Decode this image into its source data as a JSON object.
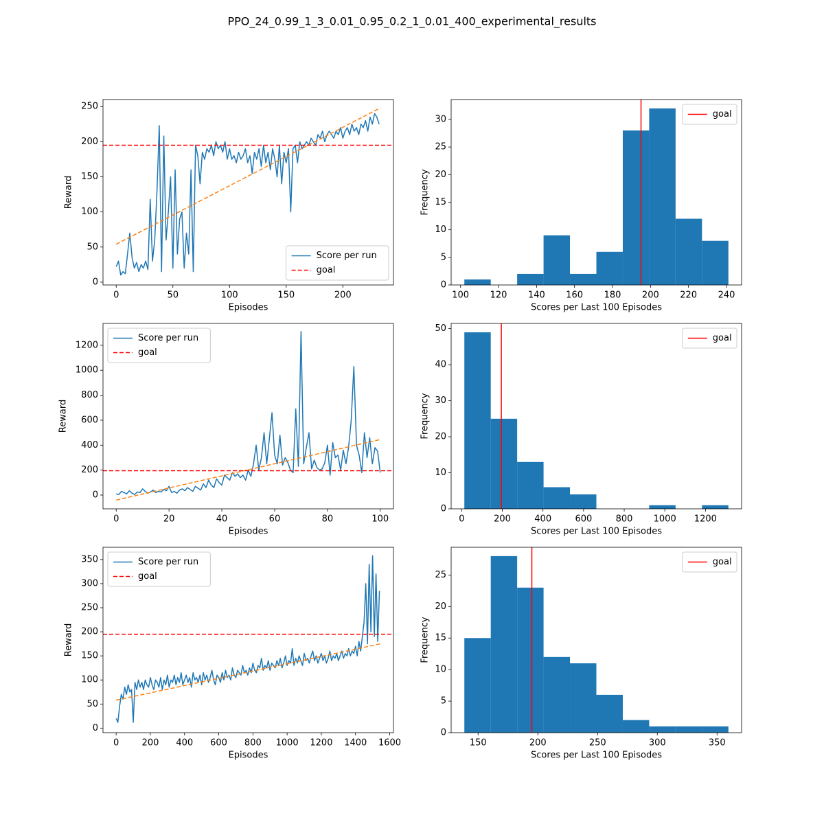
{
  "title": "PPO_24_0.99_1_3_0.01_0.95_0.2_1_0.01_400_experimental_results",
  "chart_data": [
    {
      "type": "line",
      "xlabel": "Episodes",
      "ylabel": "Reward",
      "x": [
        0,
        2,
        4,
        6,
        8,
        10,
        12,
        14,
        16,
        18,
        20,
        22,
        24,
        26,
        28,
        30,
        32,
        34,
        36,
        38,
        40,
        42,
        44,
        46,
        48,
        50,
        52,
        54,
        56,
        58,
        60,
        62,
        64,
        66,
        68,
        70,
        72,
        74,
        76,
        78,
        80,
        82,
        84,
        86,
        88,
        90,
        92,
        94,
        96,
        98,
        100,
        102,
        104,
        106,
        108,
        110,
        112,
        114,
        116,
        118,
        120,
        122,
        124,
        126,
        128,
        130,
        132,
        134,
        136,
        138,
        140,
        142,
        144,
        146,
        148,
        150,
        152,
        154,
        156,
        158,
        160,
        162,
        164,
        166,
        168,
        170,
        172,
        174,
        176,
        178,
        180,
        182,
        184,
        186,
        188,
        190,
        192,
        194,
        196,
        198,
        200,
        202,
        204,
        206,
        208,
        210,
        212,
        214,
        216,
        218,
        220,
        222,
        224,
        226,
        228,
        230,
        232
      ],
      "series": [
        {
          "name": "Score per run",
          "color": "#1f77b4",
          "values": [
            22,
            30,
            10,
            15,
            12,
            40,
            70,
            35,
            20,
            28,
            15,
            25,
            20,
            30,
            18,
            118,
            30,
            60,
            130,
            223,
            15,
            208,
            60,
            100,
            150,
            20,
            160,
            40,
            90,
            100,
            20,
            70,
            40,
            160,
            15,
            195,
            180,
            140,
            185,
            175,
            190,
            185,
            195,
            180,
            200,
            190,
            195,
            185,
            200,
            175,
            190,
            175,
            180,
            170,
            185,
            175,
            180,
            190,
            170,
            180,
            155,
            185,
            175,
            190,
            165,
            195,
            170,
            185,
            160,
            190,
            175,
            150,
            195,
            140,
            185,
            170,
            190,
            100,
            190,
            195,
            170,
            200,
            190,
            195,
            200,
            195,
            205,
            200,
            195,
            210,
            205,
            215,
            200,
            210,
            215,
            210,
            205,
            215,
            210,
            220,
            205,
            215,
            220,
            210,
            225,
            215,
            220,
            210,
            225,
            220,
            230,
            215,
            235,
            225,
            240,
            235,
            225
          ]
        }
      ],
      "trend": {
        "x": [
          0,
          233
        ],
        "values": [
          54,
          248
        ],
        "color": "#ff7f0e",
        "linestyle": "dashed"
      },
      "hlines": [
        {
          "name": "goal",
          "value": 195,
          "color": "#ff0000",
          "linestyle": "dashed"
        }
      ],
      "xlim": [
        -11.65,
        244.65
      ],
      "ylim": [
        -4,
        260
      ],
      "xticks": [
        0,
        50,
        100,
        150,
        200
      ],
      "yticks": [
        0,
        50,
        100,
        150,
        200,
        250
      ],
      "legend": "lower right"
    },
    {
      "type": "histogram",
      "xlabel": "Scores per Last 100 Episodes",
      "ylabel": "Frequency",
      "bins": [
        102,
        115.9,
        129.8,
        143.7,
        157.6,
        171.5,
        185.4,
        199.3,
        213.2,
        227.1,
        241
      ],
      "counts": [
        1,
        0,
        2,
        9,
        2,
        6,
        28,
        32,
        12,
        8
      ],
      "color": "#1f77b4",
      "vlines": [
        {
          "name": "goal",
          "value": 195,
          "color": "#ff0000",
          "linestyle": "solid"
        }
      ],
      "xlim": [
        95.05,
        247.95
      ],
      "ylim": [
        0,
        33.6
      ],
      "xticks": [
        100,
        120,
        140,
        160,
        180,
        200,
        220,
        240
      ],
      "yticks": [
        0,
        5,
        10,
        15,
        20,
        25,
        30
      ],
      "legend": "upper right"
    },
    {
      "type": "line",
      "xlabel": "Episodes",
      "ylabel": "Reward",
      "x": [
        0,
        1,
        2,
        3,
        4,
        5,
        6,
        7,
        8,
        9,
        10,
        11,
        12,
        13,
        14,
        15,
        16,
        17,
        18,
        19,
        20,
        21,
        22,
        23,
        24,
        25,
        26,
        27,
        28,
        29,
        30,
        31,
        32,
        33,
        34,
        35,
        36,
        37,
        38,
        39,
        40,
        41,
        42,
        43,
        44,
        45,
        46,
        47,
        48,
        49,
        50,
        51,
        52,
        53,
        54,
        55,
        56,
        57,
        58,
        59,
        60,
        61,
        62,
        63,
        64,
        65,
        66,
        67,
        68,
        69,
        70,
        71,
        72,
        73,
        74,
        75,
        76,
        77,
        78,
        79,
        80,
        81,
        82,
        83,
        84,
        85,
        86,
        87,
        88,
        89,
        90,
        91,
        92,
        93,
        94,
        95,
        96,
        97,
        98,
        99,
        100
      ],
      "series": [
        {
          "name": "Score per run",
          "color": "#1f77b4",
          "values": [
            10,
            5,
            30,
            20,
            10,
            35,
            15,
            5,
            25,
            20,
            50,
            30,
            15,
            25,
            40,
            20,
            30,
            25,
            45,
            35,
            70,
            20,
            30,
            15,
            40,
            50,
            35,
            60,
            45,
            30,
            70,
            55,
            40,
            90,
            60,
            120,
            80,
            60,
            130,
            100,
            80,
            160,
            140,
            120,
            180,
            150,
            170,
            140,
            160,
            120,
            200,
            150,
            250,
            400,
            200,
            300,
            500,
            250,
            450,
            660,
            320,
            250,
            480,
            240,
            300,
            260,
            200,
            180,
            690,
            230,
            1310,
            250,
            380,
            500,
            210,
            280,
            220,
            200,
            210,
            260,
            400,
            160,
            420,
            300,
            320,
            200,
            360,
            250,
            380,
            600,
            1030,
            400,
            320,
            180,
            500,
            300,
            460,
            250,
            380,
            350,
            180
          ]
        }
      ],
      "trend": {
        "x": [
          0,
          100
        ],
        "values": [
          -40,
          445
        ],
        "color": "#ff7f0e",
        "linestyle": "dashed"
      },
      "hlines": [
        {
          "name": "goal",
          "value": 195,
          "color": "#ff0000",
          "linestyle": "dashed"
        }
      ],
      "xlim": [
        -5,
        105
      ],
      "ylim": [
        -110,
        1375
      ],
      "xticks": [
        0,
        20,
        40,
        60,
        80,
        100
      ],
      "yticks": [
        0,
        200,
        400,
        600,
        800,
        1000,
        1200
      ],
      "legend": "upper left"
    },
    {
      "type": "histogram",
      "xlabel": "Scores per Last 100 Episodes",
      "ylabel": "Frequency",
      "bins": [
        13,
        143,
        273,
        403,
        533,
        663,
        793,
        923,
        1053,
        1183,
        1313
      ],
      "counts": [
        49,
        25,
        13,
        6,
        4,
        0,
        0,
        1,
        0,
        1
      ],
      "color": "#1f77b4",
      "vlines": [
        {
          "name": "goal",
          "value": 195,
          "color": "#ff0000",
          "linestyle": "solid"
        }
      ],
      "xlim": [
        -52,
        1378
      ],
      "ylim": [
        0,
        51.45
      ],
      "xticks": [
        0,
        200,
        400,
        600,
        800,
        1000,
        1200
      ],
      "yticks": [
        0,
        10,
        20,
        30,
        40,
        50
      ],
      "legend": "upper right"
    },
    {
      "type": "line",
      "xlabel": "Episodes",
      "ylabel": "Reward",
      "x": [
        0,
        10,
        20,
        30,
        40,
        50,
        60,
        70,
        80,
        90,
        100,
        110,
        120,
        130,
        140,
        150,
        160,
        170,
        180,
        190,
        200,
        210,
        220,
        230,
        240,
        250,
        260,
        270,
        280,
        290,
        300,
        310,
        320,
        330,
        340,
        350,
        360,
        370,
        380,
        390,
        400,
        410,
        420,
        430,
        440,
        450,
        460,
        470,
        480,
        490,
        500,
        510,
        520,
        530,
        540,
        550,
        560,
        570,
        580,
        590,
        600,
        610,
        620,
        630,
        640,
        650,
        660,
        670,
        680,
        690,
        700,
        710,
        720,
        730,
        740,
        750,
        760,
        770,
        780,
        790,
        800,
        810,
        820,
        830,
        840,
        850,
        860,
        870,
        880,
        890,
        900,
        910,
        920,
        930,
        940,
        950,
        960,
        970,
        980,
        990,
        1000,
        1010,
        1020,
        1030,
        1040,
        1050,
        1060,
        1070,
        1080,
        1090,
        1100,
        1110,
        1120,
        1130,
        1140,
        1150,
        1160,
        1170,
        1180,
        1190,
        1200,
        1210,
        1220,
        1230,
        1240,
        1250,
        1260,
        1270,
        1280,
        1290,
        1300,
        1310,
        1320,
        1330,
        1340,
        1350,
        1360,
        1370,
        1380,
        1390,
        1400,
        1410,
        1420,
        1430,
        1440,
        1450,
        1460,
        1470,
        1480,
        1490,
        1500,
        1510,
        1520,
        1530,
        1540
      ],
      "series": [
        {
          "name": "Score per run",
          "color": "#1f77b4",
          "values": [
            20,
            12,
            45,
            70,
            60,
            85,
            70,
            90,
            75,
            80,
            12,
            95,
            80,
            100,
            85,
            95,
            80,
            100,
            90,
            85,
            105,
            90,
            80,
            100,
            95,
            85,
            105,
            80,
            100,
            90,
            110,
            85,
            100,
            95,
            110,
            90,
            105,
            95,
            115,
            90,
            100,
            110,
            95,
            105,
            85,
            115,
            100,
            105,
            95,
            110,
            90,
            115,
            100,
            110,
            95,
            105,
            120,
            100,
            90,
            110,
            105,
            95,
            115,
            100,
            120,
            105,
            110,
            100,
            125,
            110,
            105,
            120,
            115,
            110,
            130,
            115,
            120,
            110,
            125,
            115,
            135,
            120,
            115,
            130,
            125,
            145,
            120,
            130,
            125,
            140,
            120,
            135,
            130,
            125,
            140,
            130,
            145,
            125,
            135,
            150,
            130,
            140,
            135,
            165,
            130,
            145,
            135,
            150,
            140,
            130,
            155,
            140,
            145,
            135,
            150,
            160,
            140,
            150,
            135,
            145,
            155,
            140,
            150,
            135,
            145,
            160,
            140,
            150,
            145,
            155,
            140,
            150,
            160,
            145,
            155,
            150,
            165,
            150,
            160,
            155,
            170,
            150,
            180,
            160,
            190,
            220,
            300,
            175,
            340,
            200,
            358,
            190,
            320,
            180,
            285
          ]
        }
      ],
      "trend": {
        "x": [
          0,
          1545
        ],
        "values": [
          58,
          175
        ],
        "color": "#ff7f0e",
        "linestyle": "dashed"
      },
      "hlines": [
        {
          "name": "goal",
          "value": 195,
          "color": "#ff0000",
          "linestyle": "dashed"
        }
      ],
      "xlim": [
        -77,
        1622
      ],
      "ylim": [
        -9.5,
        375.5
      ],
      "xticks": [
        0,
        200,
        400,
        600,
        800,
        1000,
        1200,
        1400,
        1600
      ],
      "yticks": [
        0,
        50,
        100,
        150,
        200,
        250,
        300,
        350
      ],
      "legend": "upper left"
    },
    {
      "type": "histogram",
      "xlabel": "Scores per Last 100 Episodes",
      "ylabel": "Frequency",
      "bins": [
        138.5,
        160.6,
        182.7,
        204.8,
        226.9,
        249,
        271.1,
        293.2,
        315.3,
        337.4,
        359.5
      ],
      "counts": [
        15,
        28,
        23,
        12,
        11,
        6,
        2,
        1,
        1,
        1
      ],
      "color": "#1f77b4",
      "vlines": [
        {
          "name": "goal",
          "value": 195,
          "color": "#ff0000",
          "linestyle": "solid"
        }
      ],
      "xlim": [
        127.45,
        370.55
      ],
      "ylim": [
        0,
        29.4
      ],
      "xticks": [
        150,
        200,
        250,
        300,
        350
      ],
      "yticks": [
        0,
        5,
        10,
        15,
        20,
        25
      ],
      "legend": "upper right"
    }
  ]
}
